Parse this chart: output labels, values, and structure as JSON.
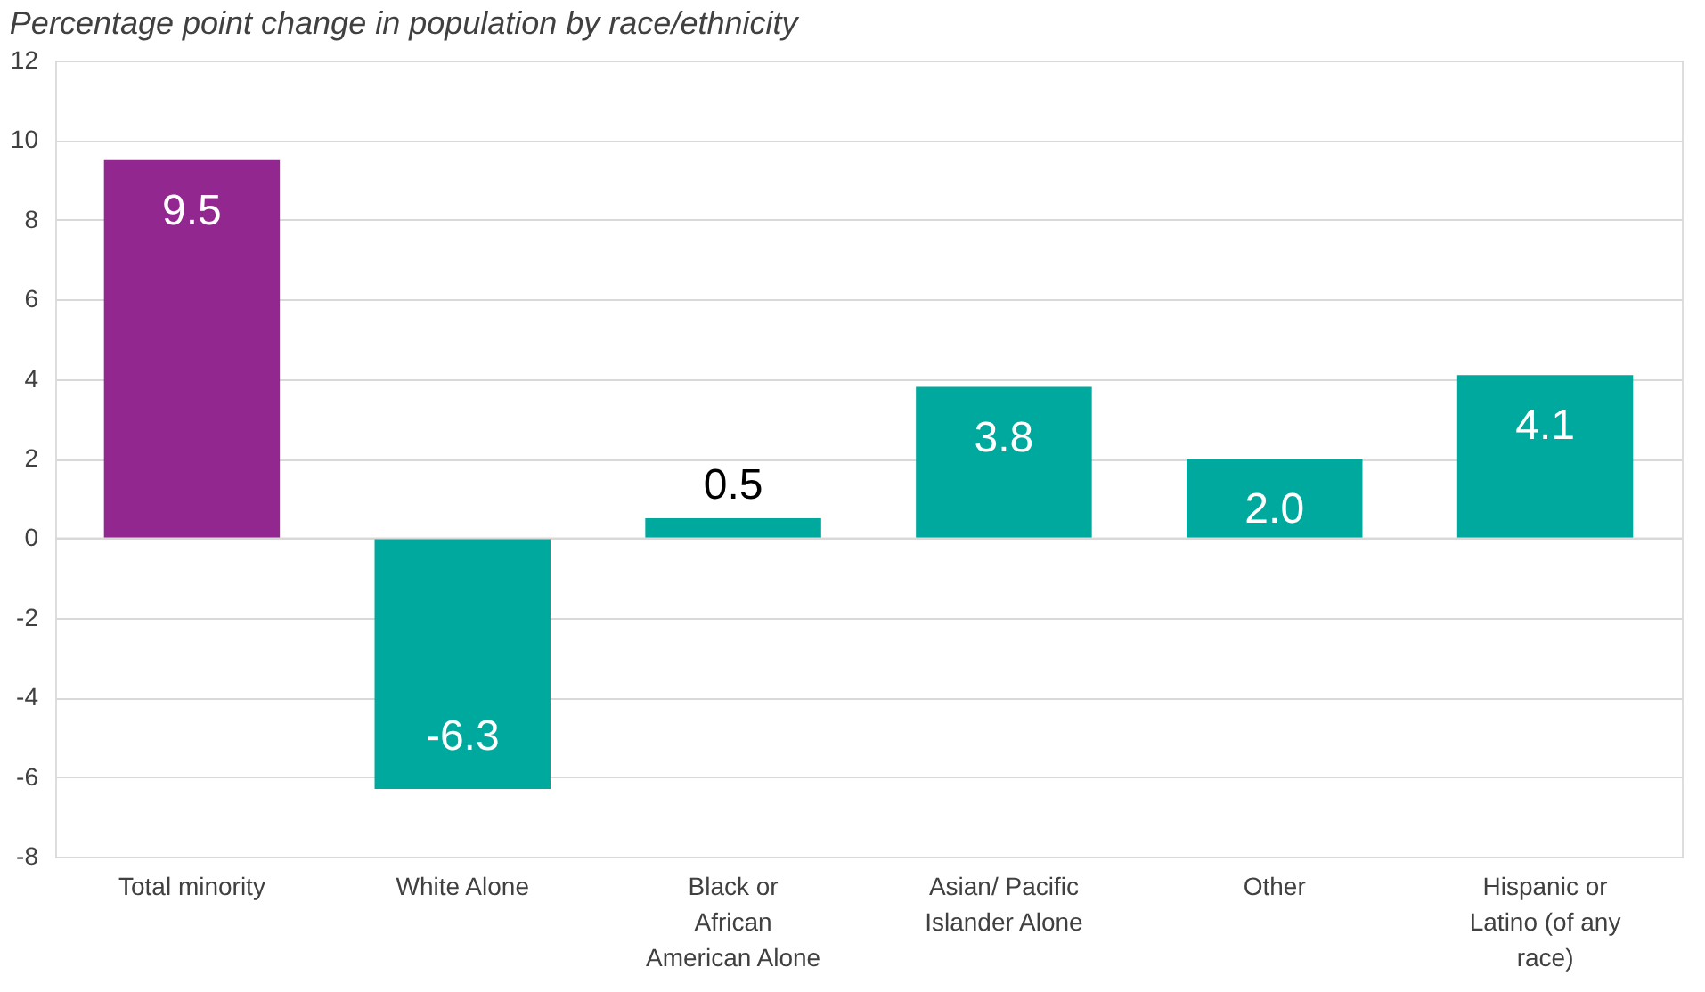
{
  "chart_data": {
    "type": "bar",
    "title": "Percentage point change in population by race/ethnicity",
    "categories": [
      "Total minority",
      "White Alone",
      "Black or African American Alone",
      "Asian/ Pacific Islander Alone",
      "Other",
      "Hispanic or Latino (of any race)"
    ],
    "values": [
      9.5,
      -6.3,
      0.5,
      3.8,
      2.0,
      4.1
    ],
    "value_labels": [
      "9.5",
      "-6.3",
      "0.5",
      "3.8",
      "2.0",
      "4.1"
    ],
    "colors": [
      "#92278f",
      "#00a99d",
      "#00a99d",
      "#00a99d",
      "#00a99d",
      "#00a99d"
    ],
    "ylim": [
      -8,
      12
    ],
    "yticks": [
      -8,
      -6,
      -4,
      -2,
      0,
      2,
      4,
      6,
      8,
      10,
      12
    ],
    "grid": "y"
  }
}
